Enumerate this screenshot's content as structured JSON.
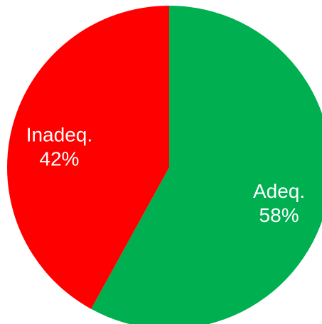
{
  "chart_data": {
    "type": "pie",
    "categories": [
      "Adeq.",
      "Inadeq."
    ],
    "values": [
      58,
      42
    ],
    "value_labels": [
      "58%",
      "42%"
    ],
    "colors": [
      "#00b050",
      "#ff0000"
    ]
  }
}
